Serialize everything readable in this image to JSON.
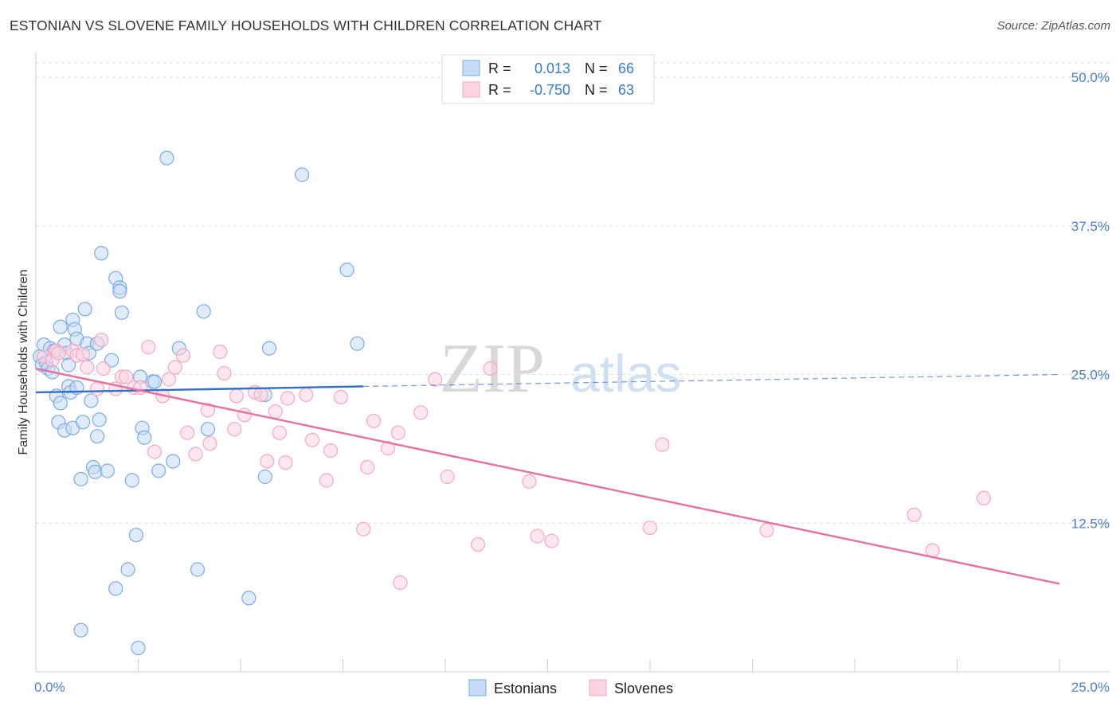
{
  "title": "ESTONIAN VS SLOVENE FAMILY HOUSEHOLDS WITH CHILDREN CORRELATION CHART",
  "source": "Source: ZipAtlas.com",
  "watermark": {
    "zip": "ZIP",
    "atlas": "atlas"
  },
  "chart_data": {
    "type": "scatter",
    "ylabel": "Family Households with Children",
    "xlim": [
      0,
      25
    ],
    "ylim": [
      0,
      51
    ],
    "x_tick_labels": [
      "0.0%",
      "25.0%"
    ],
    "y_ticks": [
      12.5,
      25.0,
      37.5,
      50.0
    ],
    "y_tick_labels": [
      "12.5%",
      "25.0%",
      "37.5%",
      "50.0%"
    ],
    "grid": "horizontal dashed",
    "legend_position": "top-center",
    "stats": [
      {
        "r_label": "R =",
        "r": "0.013",
        "n_label": "N =",
        "n": "66"
      },
      {
        "r_label": "R =",
        "r": "-0.750",
        "n_label": "N =",
        "n": "63"
      }
    ],
    "series": [
      {
        "name": "Estonians",
        "color": "#7aaae8",
        "line_color": "#2f6fd0",
        "trend": {
          "x": [
            0,
            8
          ],
          "y": [
            23.5,
            24.0
          ],
          "extended_to": 25,
          "extended_y": 25.0
        },
        "points": [
          [
            0.1,
            26.5
          ],
          [
            0.15,
            25.8
          ],
          [
            0.2,
            27.5
          ],
          [
            0.25,
            26.0
          ],
          [
            0.3,
            25.5
          ],
          [
            0.35,
            27.2
          ],
          [
            0.4,
            25.2
          ],
          [
            0.45,
            27.0
          ],
          [
            0.5,
            23.2
          ],
          [
            0.55,
            21.0
          ],
          [
            0.6,
            22.6
          ],
          [
            0.6,
            29.0
          ],
          [
            0.7,
            20.3
          ],
          [
            0.7,
            27.5
          ],
          [
            0.75,
            26.8
          ],
          [
            0.8,
            25.8
          ],
          [
            0.8,
            24.0
          ],
          [
            0.85,
            23.5
          ],
          [
            0.9,
            20.5
          ],
          [
            0.9,
            29.6
          ],
          [
            0.95,
            28.8
          ],
          [
            1.0,
            28.0
          ],
          [
            1.0,
            23.9
          ],
          [
            1.1,
            16.2
          ],
          [
            1.1,
            3.5
          ],
          [
            1.15,
            21.0
          ],
          [
            1.2,
            30.5
          ],
          [
            1.25,
            27.6
          ],
          [
            1.3,
            26.8
          ],
          [
            1.35,
            22.8
          ],
          [
            1.4,
            17.2
          ],
          [
            1.45,
            16.8
          ],
          [
            1.5,
            19.8
          ],
          [
            1.55,
            21.2
          ],
          [
            1.5,
            27.6
          ],
          [
            1.6,
            35.2
          ],
          [
            1.85,
            26.2
          ],
          [
            1.95,
            7.0
          ],
          [
            1.95,
            33.1
          ],
          [
            2.05,
            32.3
          ],
          [
            2.05,
            32.0
          ],
          [
            2.1,
            30.2
          ],
          [
            2.25,
            8.6
          ],
          [
            2.35,
            16.1
          ],
          [
            2.45,
            11.5
          ],
          [
            2.5,
            2.0
          ],
          [
            2.55,
            24.8
          ],
          [
            2.6,
            20.5
          ],
          [
            2.65,
            19.7
          ],
          [
            2.85,
            24.4
          ],
          [
            2.9,
            24.4
          ],
          [
            3.0,
            16.9
          ],
          [
            3.2,
            43.2
          ],
          [
            3.35,
            17.7
          ],
          [
            3.5,
            27.2
          ],
          [
            3.95,
            8.6
          ],
          [
            4.1,
            30.3
          ],
          [
            4.2,
            20.4
          ],
          [
            5.2,
            6.2
          ],
          [
            5.6,
            16.4
          ],
          [
            5.6,
            23.3
          ],
          [
            5.7,
            27.2
          ],
          [
            6.5,
            41.8
          ],
          [
            7.6,
            33.8
          ],
          [
            7.85,
            27.6
          ],
          [
            1.75,
            16.9
          ]
        ]
      },
      {
        "name": "Slovenes",
        "color": "#f4a7c0",
        "line_color": "#e8709a",
        "trend": {
          "x": [
            0,
            25
          ],
          "y": [
            25.5,
            7.4
          ]
        },
        "points": [
          [
            0.2,
            26.5
          ],
          [
            0.4,
            26.2
          ],
          [
            0.5,
            27.0
          ],
          [
            0.55,
            26.8
          ],
          [
            0.9,
            27.0
          ],
          [
            1.0,
            26.6
          ],
          [
            1.15,
            26.7
          ],
          [
            1.25,
            25.6
          ],
          [
            1.5,
            23.8
          ],
          [
            1.6,
            27.9
          ],
          [
            1.65,
            25.5
          ],
          [
            1.95,
            23.8
          ],
          [
            2.1,
            24.8
          ],
          [
            2.2,
            24.8
          ],
          [
            2.4,
            23.9
          ],
          [
            2.55,
            23.9
          ],
          [
            2.75,
            27.3
          ],
          [
            2.9,
            18.5
          ],
          [
            3.1,
            23.2
          ],
          [
            3.25,
            24.6
          ],
          [
            3.4,
            25.6
          ],
          [
            3.6,
            26.6
          ],
          [
            3.7,
            20.1
          ],
          [
            3.9,
            18.3
          ],
          [
            4.2,
            22.0
          ],
          [
            4.25,
            19.2
          ],
          [
            4.5,
            26.9
          ],
          [
            4.6,
            25.1
          ],
          [
            4.85,
            20.4
          ],
          [
            4.9,
            23.2
          ],
          [
            5.1,
            21.6
          ],
          [
            5.35,
            23.5
          ],
          [
            5.5,
            23.3
          ],
          [
            5.65,
            17.7
          ],
          [
            5.85,
            21.9
          ],
          [
            5.95,
            20.1
          ],
          [
            6.1,
            17.6
          ],
          [
            6.15,
            23.0
          ],
          [
            6.6,
            23.3
          ],
          [
            6.75,
            19.5
          ],
          [
            7.1,
            16.1
          ],
          [
            7.2,
            18.6
          ],
          [
            7.45,
            23.1
          ],
          [
            8.0,
            12.0
          ],
          [
            8.1,
            17.2
          ],
          [
            8.25,
            21.1
          ],
          [
            8.6,
            18.8
          ],
          [
            8.85,
            20.1
          ],
          [
            8.9,
            7.5
          ],
          [
            9.4,
            21.8
          ],
          [
            9.75,
            24.6
          ],
          [
            10.05,
            16.4
          ],
          [
            10.8,
            10.7
          ],
          [
            11.1,
            25.5
          ],
          [
            12.05,
            16.0
          ],
          [
            12.25,
            11.4
          ],
          [
            12.6,
            11.0
          ],
          [
            15.0,
            12.1
          ],
          [
            15.3,
            19.1
          ],
          [
            17.85,
            11.9
          ],
          [
            21.45,
            13.2
          ],
          [
            21.9,
            10.2
          ],
          [
            23.15,
            14.6
          ]
        ]
      }
    ]
  }
}
